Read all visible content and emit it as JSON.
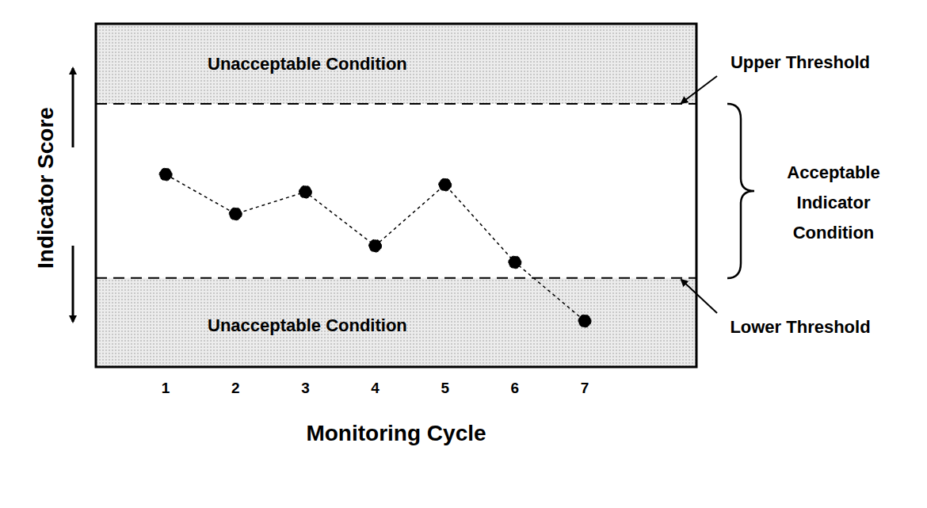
{
  "chart_data": {
    "type": "line",
    "x_label": "Monitoring Cycle",
    "y_label": "Indicator Score",
    "x": [
      1,
      2,
      3,
      4,
      5,
      6,
      7
    ],
    "values": [
      56.1,
      44.6,
      51.0,
      35.3,
      53.1,
      30.5,
      13.4
    ],
    "color": "#000000",
    "marker": "circle",
    "line_style": "dashed",
    "xlim": [
      0,
      8.6
    ],
    "xticks": [
      1,
      2,
      3,
      4,
      5,
      6,
      7
    ],
    "ylim": [
      0,
      100
    ],
    "yticks": [],
    "tick_labels": "x",
    "thresholds": {
      "upper": {
        "value": 76.7,
        "label": "Upper Threshold"
      },
      "lower": {
        "value": 25.9,
        "label": "Lower Threshold"
      }
    },
    "annotations": {
      "upper_region": "Unacceptable Condition",
      "lower_region": "Unacceptable Condition",
      "acceptable_region": "Acceptable Indicator Condition"
    }
  }
}
